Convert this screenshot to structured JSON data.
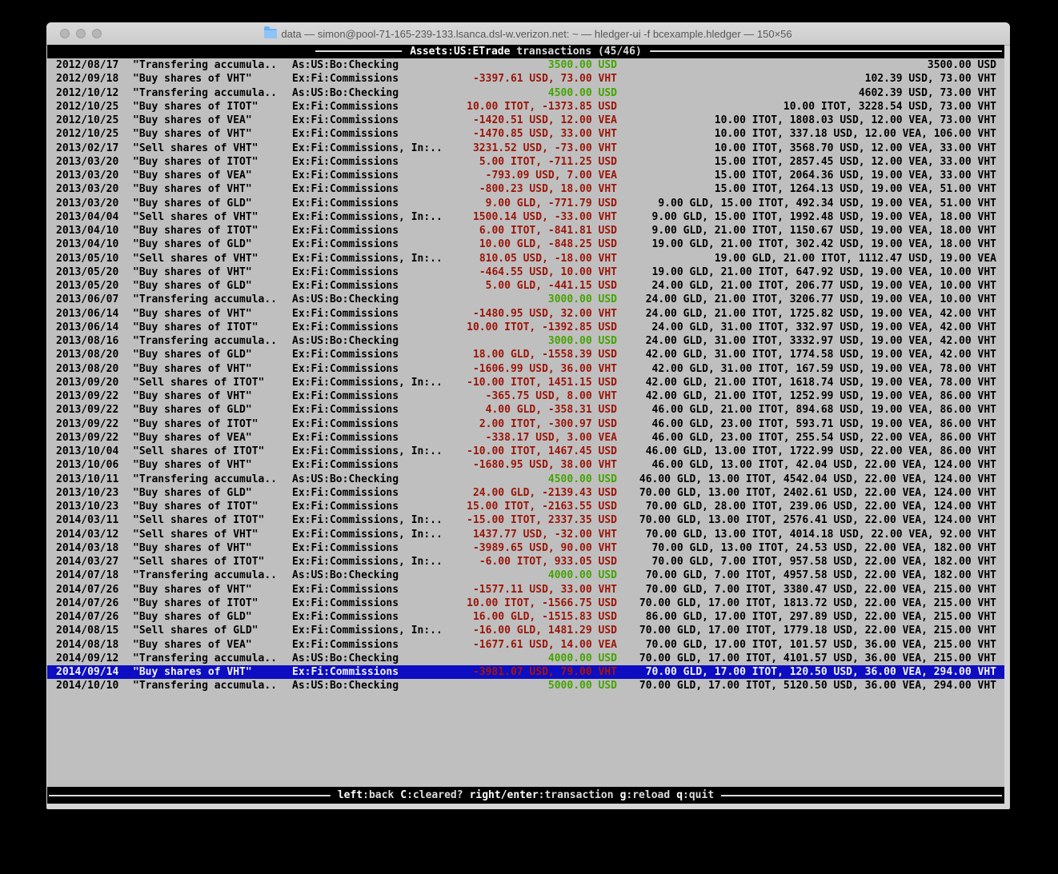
{
  "window": {
    "title": "data — simon@pool-71-165-239-133.lsanca.dsl-w.verizon.net: ~ — hledger-ui -f bcexample.hledger — 150×56"
  },
  "header": {
    "account": "Assets:US:ETrade",
    "rest": " transactions (45/46)"
  },
  "footer": {
    "keys": [
      {
        "key": "left",
        "label": ":back"
      },
      {
        "key": "C",
        "label": ":cleared?"
      },
      {
        "key": "right/enter",
        "label": ":transaction"
      },
      {
        "key": "g",
        "label": ":reload"
      },
      {
        "key": "q",
        "label": ":quit"
      }
    ]
  },
  "colors": {
    "terminal_bg": "#bfbfbf",
    "positive_amount": "#44a400",
    "negative_amount": "#9b1408",
    "selection_bg": "#0d0dc1",
    "bar_bg": "#000000"
  },
  "transactions": {
    "selected_index": 44,
    "rows": [
      {
        "date": "2012/08/17",
        "desc": "\"Transfering accumula..",
        "acct": "As:US:Bo:Checking",
        "amount": "3500.00 USD",
        "balance": "3500.00 USD"
      },
      {
        "date": "2012/09/18",
        "desc": "\"Buy shares of VHT\"",
        "acct": "Ex:Fi:Commissions",
        "amount": "-3397.61 USD, 73.00 VHT",
        "balance": "102.39 USD, 73.00 VHT"
      },
      {
        "date": "2012/10/12",
        "desc": "\"Transfering accumula..",
        "acct": "As:US:Bo:Checking",
        "amount": "4500.00 USD",
        "balance": "4602.39 USD, 73.00 VHT"
      },
      {
        "date": "2012/10/25",
        "desc": "\"Buy shares of ITOT\"",
        "acct": "Ex:Fi:Commissions",
        "amount": "10.00 ITOT, -1373.85 USD",
        "balance": "10.00 ITOT, 3228.54 USD, 73.00 VHT"
      },
      {
        "date": "2012/10/25",
        "desc": "\"Buy shares of VEA\"",
        "acct": "Ex:Fi:Commissions",
        "amount": "-1420.51 USD, 12.00 VEA",
        "balance": "10.00 ITOT, 1808.03 USD, 12.00 VEA, 73.00 VHT"
      },
      {
        "date": "2012/10/25",
        "desc": "\"Buy shares of VHT\"",
        "acct": "Ex:Fi:Commissions",
        "amount": "-1470.85 USD, 33.00 VHT",
        "balance": "10.00 ITOT, 337.18 USD, 12.00 VEA, 106.00 VHT"
      },
      {
        "date": "2013/02/17",
        "desc": "\"Sell shares of VHT\"",
        "acct": "Ex:Fi:Commissions, In:..",
        "amount": "3231.52 USD, -73.00 VHT",
        "balance": "10.00 ITOT, 3568.70 USD, 12.00 VEA, 33.00 VHT"
      },
      {
        "date": "2013/03/20",
        "desc": "\"Buy shares of ITOT\"",
        "acct": "Ex:Fi:Commissions",
        "amount": "5.00 ITOT, -711.25 USD",
        "balance": "15.00 ITOT, 2857.45 USD, 12.00 VEA, 33.00 VHT"
      },
      {
        "date": "2013/03/20",
        "desc": "\"Buy shares of VEA\"",
        "acct": "Ex:Fi:Commissions",
        "amount": "-793.09 USD, 7.00 VEA",
        "balance": "15.00 ITOT, 2064.36 USD, 19.00 VEA, 33.00 VHT"
      },
      {
        "date": "2013/03/20",
        "desc": "\"Buy shares of VHT\"",
        "acct": "Ex:Fi:Commissions",
        "amount": "-800.23 USD, 18.00 VHT",
        "balance": "15.00 ITOT, 1264.13 USD, 19.00 VEA, 51.00 VHT"
      },
      {
        "date": "2013/03/20",
        "desc": "\"Buy shares of GLD\"",
        "acct": "Ex:Fi:Commissions",
        "amount": "9.00 GLD, -771.79 USD",
        "balance": "9.00 GLD, 15.00 ITOT, 492.34 USD, 19.00 VEA, 51.00 VHT"
      },
      {
        "date": "2013/04/04",
        "desc": "\"Sell shares of VHT\"",
        "acct": "Ex:Fi:Commissions, In:..",
        "amount": "1500.14 USD, -33.00 VHT",
        "balance": "9.00 GLD, 15.00 ITOT, 1992.48 USD, 19.00 VEA, 18.00 VHT"
      },
      {
        "date": "2013/04/10",
        "desc": "\"Buy shares of ITOT\"",
        "acct": "Ex:Fi:Commissions",
        "amount": "6.00 ITOT, -841.81 USD",
        "balance": "9.00 GLD, 21.00 ITOT, 1150.67 USD, 19.00 VEA, 18.00 VHT"
      },
      {
        "date": "2013/04/10",
        "desc": "\"Buy shares of GLD\"",
        "acct": "Ex:Fi:Commissions",
        "amount": "10.00 GLD, -848.25 USD",
        "balance": "19.00 GLD, 21.00 ITOT, 302.42 USD, 19.00 VEA, 18.00 VHT"
      },
      {
        "date": "2013/05/10",
        "desc": "\"Sell shares of VHT\"",
        "acct": "Ex:Fi:Commissions, In:..",
        "amount": "810.05 USD, -18.00 VHT",
        "balance": "19.00 GLD, 21.00 ITOT, 1112.47 USD, 19.00 VEA"
      },
      {
        "date": "2013/05/20",
        "desc": "\"Buy shares of VHT\"",
        "acct": "Ex:Fi:Commissions",
        "amount": "-464.55 USD, 10.00 VHT",
        "balance": "19.00 GLD, 21.00 ITOT, 647.92 USD, 19.00 VEA, 10.00 VHT"
      },
      {
        "date": "2013/05/20",
        "desc": "\"Buy shares of GLD\"",
        "acct": "Ex:Fi:Commissions",
        "amount": "5.00 GLD, -441.15 USD",
        "balance": "24.00 GLD, 21.00 ITOT, 206.77 USD, 19.00 VEA, 10.00 VHT"
      },
      {
        "date": "2013/06/07",
        "desc": "\"Transfering accumula..",
        "acct": "As:US:Bo:Checking",
        "amount": "3000.00 USD",
        "balance": "24.00 GLD, 21.00 ITOT, 3206.77 USD, 19.00 VEA, 10.00 VHT"
      },
      {
        "date": "2013/06/14",
        "desc": "\"Buy shares of VHT\"",
        "acct": "Ex:Fi:Commissions",
        "amount": "-1480.95 USD, 32.00 VHT",
        "balance": "24.00 GLD, 21.00 ITOT, 1725.82 USD, 19.00 VEA, 42.00 VHT"
      },
      {
        "date": "2013/06/14",
        "desc": "\"Buy shares of ITOT\"",
        "acct": "Ex:Fi:Commissions",
        "amount": "10.00 ITOT, -1392.85 USD",
        "balance": "24.00 GLD, 31.00 ITOT, 332.97 USD, 19.00 VEA, 42.00 VHT"
      },
      {
        "date": "2013/08/16",
        "desc": "\"Transfering accumula..",
        "acct": "As:US:Bo:Checking",
        "amount": "3000.00 USD",
        "balance": "24.00 GLD, 31.00 ITOT, 3332.97 USD, 19.00 VEA, 42.00 VHT"
      },
      {
        "date": "2013/08/20",
        "desc": "\"Buy shares of GLD\"",
        "acct": "Ex:Fi:Commissions",
        "amount": "18.00 GLD, -1558.39 USD",
        "balance": "42.00 GLD, 31.00 ITOT, 1774.58 USD, 19.00 VEA, 42.00 VHT"
      },
      {
        "date": "2013/08/20",
        "desc": "\"Buy shares of VHT\"",
        "acct": "Ex:Fi:Commissions",
        "amount": "-1606.99 USD, 36.00 VHT",
        "balance": "42.00 GLD, 31.00 ITOT, 167.59 USD, 19.00 VEA, 78.00 VHT"
      },
      {
        "date": "2013/09/20",
        "desc": "\"Sell shares of ITOT\"",
        "acct": "Ex:Fi:Commissions, In:..",
        "amount": "-10.00 ITOT, 1451.15 USD",
        "balance": "42.00 GLD, 21.00 ITOT, 1618.74 USD, 19.00 VEA, 78.00 VHT"
      },
      {
        "date": "2013/09/22",
        "desc": "\"Buy shares of VHT\"",
        "acct": "Ex:Fi:Commissions",
        "amount": "-365.75 USD, 8.00 VHT",
        "balance": "42.00 GLD, 21.00 ITOT, 1252.99 USD, 19.00 VEA, 86.00 VHT"
      },
      {
        "date": "2013/09/22",
        "desc": "\"Buy shares of GLD\"",
        "acct": "Ex:Fi:Commissions",
        "amount": "4.00 GLD, -358.31 USD",
        "balance": "46.00 GLD, 21.00 ITOT, 894.68 USD, 19.00 VEA, 86.00 VHT"
      },
      {
        "date": "2013/09/22",
        "desc": "\"Buy shares of ITOT\"",
        "acct": "Ex:Fi:Commissions",
        "amount": "2.00 ITOT, -300.97 USD",
        "balance": "46.00 GLD, 23.00 ITOT, 593.71 USD, 19.00 VEA, 86.00 VHT"
      },
      {
        "date": "2013/09/22",
        "desc": "\"Buy shares of VEA\"",
        "acct": "Ex:Fi:Commissions",
        "amount": "-338.17 USD, 3.00 VEA",
        "balance": "46.00 GLD, 23.00 ITOT, 255.54 USD, 22.00 VEA, 86.00 VHT"
      },
      {
        "date": "2013/10/04",
        "desc": "\"Sell shares of ITOT\"",
        "acct": "Ex:Fi:Commissions, In:..",
        "amount": "-10.00 ITOT, 1467.45 USD",
        "balance": "46.00 GLD, 13.00 ITOT, 1722.99 USD, 22.00 VEA, 86.00 VHT"
      },
      {
        "date": "2013/10/06",
        "desc": "\"Buy shares of VHT\"",
        "acct": "Ex:Fi:Commissions",
        "amount": "-1680.95 USD, 38.00 VHT",
        "balance": "46.00 GLD, 13.00 ITOT, 42.04 USD, 22.00 VEA, 124.00 VHT"
      },
      {
        "date": "2013/10/11",
        "desc": "\"Transfering accumula..",
        "acct": "As:US:Bo:Checking",
        "amount": "4500.00 USD",
        "balance": "46.00 GLD, 13.00 ITOT, 4542.04 USD, 22.00 VEA, 124.00 VHT"
      },
      {
        "date": "2013/10/23",
        "desc": "\"Buy shares of GLD\"",
        "acct": "Ex:Fi:Commissions",
        "amount": "24.00 GLD, -2139.43 USD",
        "balance": "70.00 GLD, 13.00 ITOT, 2402.61 USD, 22.00 VEA, 124.00 VHT"
      },
      {
        "date": "2013/10/23",
        "desc": "\"Buy shares of ITOT\"",
        "acct": "Ex:Fi:Commissions",
        "amount": "15.00 ITOT, -2163.55 USD",
        "balance": "70.00 GLD, 28.00 ITOT, 239.06 USD, 22.00 VEA, 124.00 VHT"
      },
      {
        "date": "2014/03/11",
        "desc": "\"Sell shares of ITOT\"",
        "acct": "Ex:Fi:Commissions, In:..",
        "amount": "-15.00 ITOT, 2337.35 USD",
        "balance": "70.00 GLD, 13.00 ITOT, 2576.41 USD, 22.00 VEA, 124.00 VHT"
      },
      {
        "date": "2014/03/12",
        "desc": "\"Sell shares of VHT\"",
        "acct": "Ex:Fi:Commissions, In:..",
        "amount": "1437.77 USD, -32.00 VHT",
        "balance": "70.00 GLD, 13.00 ITOT, 4014.18 USD, 22.00 VEA, 92.00 VHT"
      },
      {
        "date": "2014/03/18",
        "desc": "\"Buy shares of VHT\"",
        "acct": "Ex:Fi:Commissions",
        "amount": "-3989.65 USD, 90.00 VHT",
        "balance": "70.00 GLD, 13.00 ITOT, 24.53 USD, 22.00 VEA, 182.00 VHT"
      },
      {
        "date": "2014/03/27",
        "desc": "\"Sell shares of ITOT\"",
        "acct": "Ex:Fi:Commissions, In:..",
        "amount": "-6.00 ITOT, 933.05 USD",
        "balance": "70.00 GLD, 7.00 ITOT, 957.58 USD, 22.00 VEA, 182.00 VHT"
      },
      {
        "date": "2014/07/18",
        "desc": "\"Transfering accumula..",
        "acct": "As:US:Bo:Checking",
        "amount": "4000.00 USD",
        "balance": "70.00 GLD, 7.00 ITOT, 4957.58 USD, 22.00 VEA, 182.00 VHT"
      },
      {
        "date": "2014/07/26",
        "desc": "\"Buy shares of VHT\"",
        "acct": "Ex:Fi:Commissions",
        "amount": "-1577.11 USD, 33.00 VHT",
        "balance": "70.00 GLD, 7.00 ITOT, 3380.47 USD, 22.00 VEA, 215.00 VHT"
      },
      {
        "date": "2014/07/26",
        "desc": "\"Buy shares of ITOT\"",
        "acct": "Ex:Fi:Commissions",
        "amount": "10.00 ITOT, -1566.75 USD",
        "balance": "70.00 GLD, 17.00 ITOT, 1813.72 USD, 22.00 VEA, 215.00 VHT"
      },
      {
        "date": "2014/07/26",
        "desc": "\"Buy shares of GLD\"",
        "acct": "Ex:Fi:Commissions",
        "amount": "16.00 GLD, -1515.83 USD",
        "balance": "86.00 GLD, 17.00 ITOT, 297.89 USD, 22.00 VEA, 215.00 VHT"
      },
      {
        "date": "2014/08/15",
        "desc": "\"Sell shares of GLD\"",
        "acct": "Ex:Fi:Commissions, In:..",
        "amount": "-16.00 GLD, 1481.29 USD",
        "balance": "70.00 GLD, 17.00 ITOT, 1779.18 USD, 22.00 VEA, 215.00 VHT"
      },
      {
        "date": "2014/08/18",
        "desc": "\"Buy shares of VEA\"",
        "acct": "Ex:Fi:Commissions",
        "amount": "-1677.61 USD, 14.00 VEA",
        "balance": "70.00 GLD, 17.00 ITOT, 101.57 USD, 36.00 VEA, 215.00 VHT"
      },
      {
        "date": "2014/09/12",
        "desc": "\"Transfering accumula..",
        "acct": "As:US:Bo:Checking",
        "amount": "4000.00 USD",
        "balance": "70.00 GLD, 17.00 ITOT, 4101.57 USD, 36.00 VEA, 215.00 VHT"
      },
      {
        "date": "2014/09/14",
        "desc": "\"Buy shares of VHT\"",
        "acct": "Ex:Fi:Commissions",
        "amount": "-3981.07 USD, 79.00 VHT",
        "balance": "70.00 GLD, 17.00 ITOT, 120.50 USD, 36.00 VEA, 294.00 VHT"
      },
      {
        "date": "2014/10/10",
        "desc": "\"Transfering accumula..",
        "acct": "As:US:Bo:Checking",
        "amount": "5000.00 USD",
        "balance": "70.00 GLD, 17.00 ITOT, 5120.50 USD, 36.00 VEA, 294.00 VHT"
      }
    ]
  }
}
